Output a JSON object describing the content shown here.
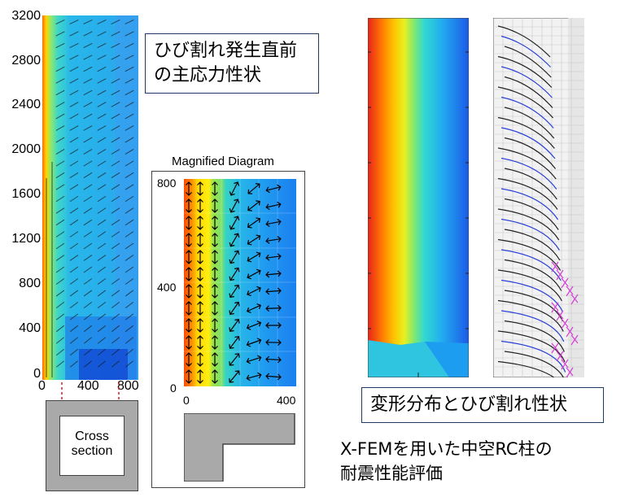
{
  "left_plot": {
    "y_ticks": [
      "3200",
      "2800",
      "2400",
      "2000",
      "1600",
      "1200",
      "800",
      "400",
      "0"
    ],
    "x_ticks": [
      "0",
      "400",
      "800"
    ]
  },
  "callout_stress": {
    "line1": "ひび割れ発生直前",
    "line2": "の主応力性状"
  },
  "magnified": {
    "title": "Magnified Diagram",
    "y_ticks": [
      "800",
      "400",
      "0"
    ],
    "x_ticks": [
      "0",
      "400"
    ]
  },
  "cross_section": {
    "line1": "Cross",
    "line2": "section"
  },
  "callout_deform": {
    "text": "変形分布とひび割れ性状"
  },
  "caption": {
    "line1": "X-FEMを用いた中空RC柱の",
    "line2": "耐震性能評価"
  },
  "colors": {
    "callout_border": "#1f3864",
    "crack_black": "#222222",
    "crack_blue": "#2a3fd6",
    "crack_magenta": "#d63fd6"
  }
}
